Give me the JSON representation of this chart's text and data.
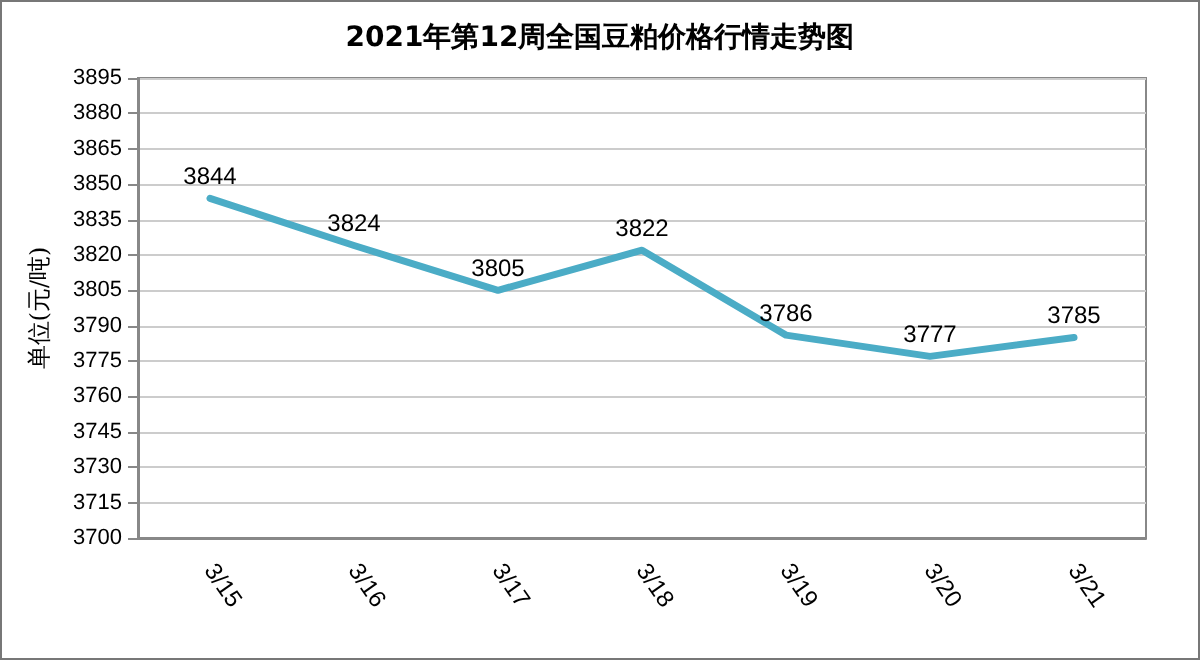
{
  "chart_data": {
    "type": "line",
    "title": "2021年第12周全国豆粕价格行情走势图",
    "ylabel": "单位(元/吨)",
    "categories": [
      "3/15",
      "3/16",
      "3/17",
      "3/18",
      "3/19",
      "3/20",
      "3/21"
    ],
    "series": [
      {
        "color": "#4bacc6",
        "values": [
          3844,
          3824,
          3805,
          3822,
          3786,
          3777,
          3785
        ]
      }
    ],
    "ylim": [
      3700,
      3895
    ],
    "yticks": [
      3700,
      3715,
      3730,
      3745,
      3760,
      3775,
      3790,
      3805,
      3820,
      3835,
      3850,
      3865,
      3880,
      3895
    ],
    "grid": "y",
    "data_labels": true,
    "marker": "none",
    "line_style": "solid"
  }
}
